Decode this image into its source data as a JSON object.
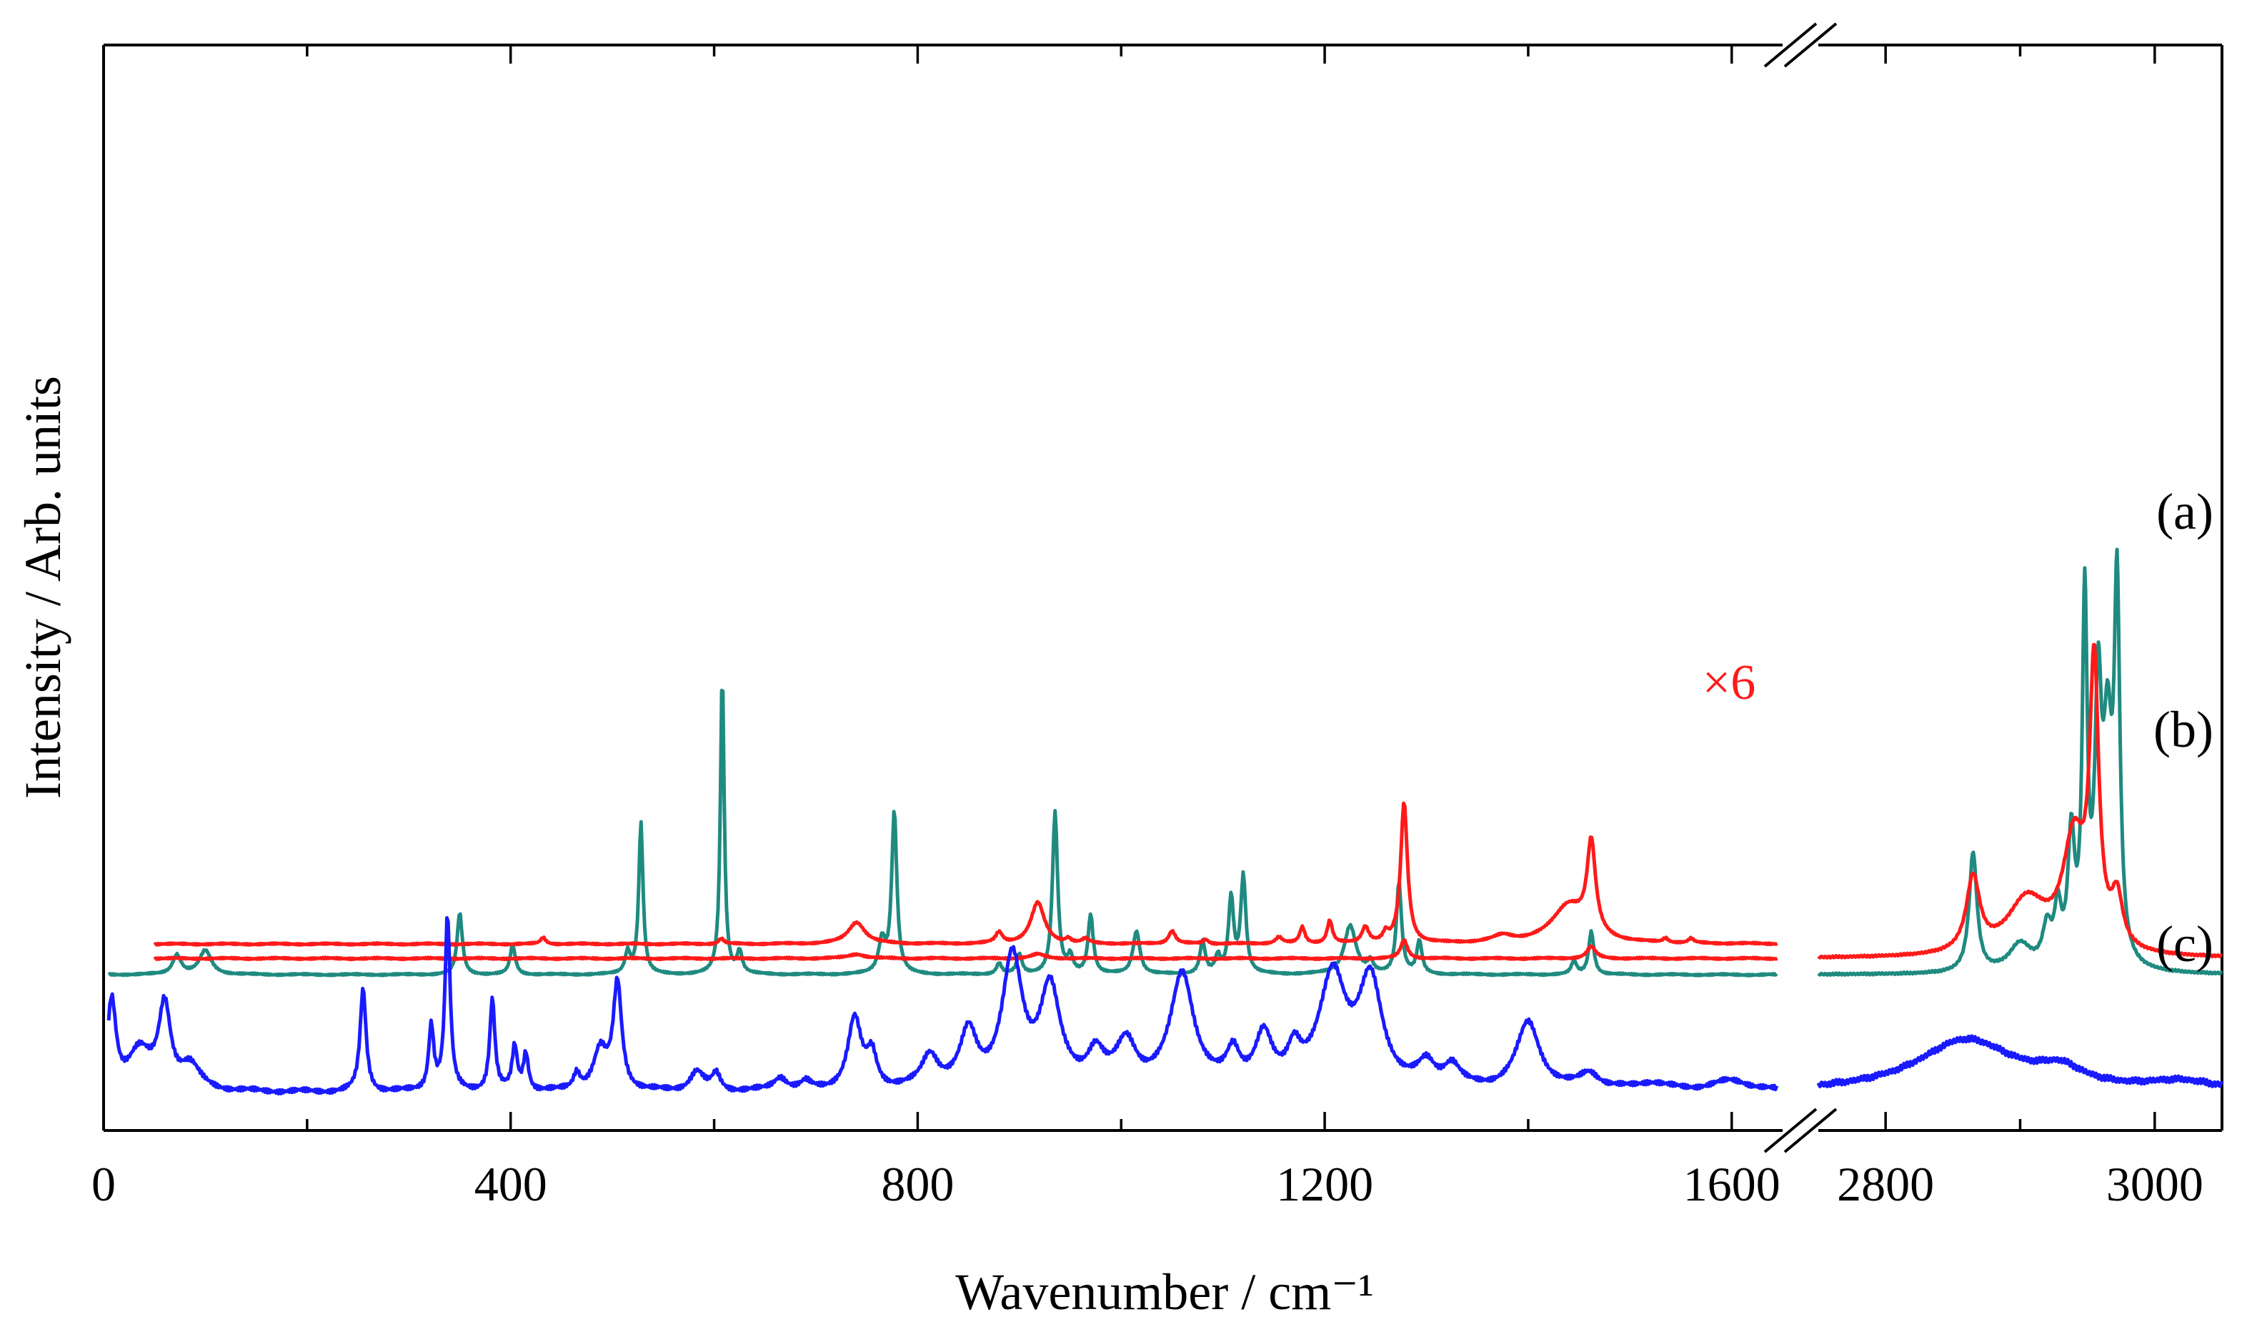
{
  "chart_data": {
    "type": "line",
    "xlabel": "Wavenumber / cm⁻¹",
    "ylabel": "Intensity / Arb. units",
    "axis_break": {
      "from": 1650,
      "to": 2750
    },
    "xlim_left": [
      0,
      1650
    ],
    "xlim_right": [
      2750,
      3050
    ],
    "xticks": [
      {
        "value": 0,
        "label": "0"
      },
      {
        "value": 400,
        "label": "400"
      },
      {
        "value": 800,
        "label": "800"
      },
      {
        "value": 1200,
        "label": "1200"
      },
      {
        "value": 1600,
        "label": "1600"
      },
      {
        "value": 2800,
        "label": "2800"
      },
      {
        "value": 3000,
        "label": "3000"
      }
    ],
    "yticks_labeled": false,
    "annotation": {
      "text": "×6",
      "x": 1600,
      "color": "#ff1a1a"
    },
    "series": [
      {
        "name": "(a)",
        "color": "#1f8a80",
        "baseline": 0.1435,
        "peaks": [
          [
            72,
            0.018,
            5
          ],
          [
            100,
            0.022,
            7
          ],
          [
            350,
            0.057,
            3
          ],
          [
            402,
            0.027,
            3
          ],
          [
            515,
            0.02,
            3
          ],
          [
            528,
            0.14,
            2.5
          ],
          [
            608,
            0.28,
            2.2
          ],
          [
            625,
            0.02,
            3
          ],
          [
            765,
            0.03,
            4
          ],
          [
            777,
            0.15,
            3
          ],
          [
            880,
            0.01,
            3
          ],
          [
            900,
            0.018,
            3
          ],
          [
            935,
            0.15,
            3
          ],
          [
            950,
            0.015,
            3
          ],
          [
            970,
            0.055,
            3
          ],
          [
            1015,
            0.04,
            4
          ],
          [
            1080,
            0.03,
            3
          ],
          [
            1095,
            0.015,
            3
          ],
          [
            1108,
            0.07,
            3
          ],
          [
            1120,
            0.09,
            3
          ],
          [
            1225,
            0.045,
            7
          ],
          [
            1245,
            0.01,
            3
          ],
          [
            1273,
            0.085,
            3
          ],
          [
            1293,
            0.03,
            3
          ],
          [
            1445,
            0.012,
            3
          ],
          [
            1462,
            0.04,
            3
          ],
          [
            2865,
            0.11,
            3.5
          ],
          [
            2900,
            0.025,
            10
          ],
          [
            2920,
            0.035,
            4
          ],
          [
            2928,
            0.05,
            3
          ],
          [
            2938,
            0.115,
            3
          ],
          [
            2948,
            0.33,
            2.2
          ],
          [
            2958,
            0.23,
            3
          ],
          [
            2965,
            0.19,
            4
          ],
          [
            2972,
            0.33,
            2.5
          ]
        ]
      },
      {
        "name": "(b)",
        "color": "#ff1a1a",
        "baseline": 0.0,
        "peaks": [
          [
            1278,
            0.017,
            4
          ],
          [
            1462,
            0.011,
            5
          ],
          [
            740,
            0.004,
            10
          ],
          [
            918,
            0.004,
            8
          ],
          [
            2865,
            0.068,
            6
          ],
          [
            2905,
            0.05,
            18
          ],
          [
            2940,
            0.1,
            10
          ],
          [
            2955,
            0.25,
            4
          ],
          [
            2972,
            0.045,
            5
          ]
        ]
      },
      {
        "name": "(b)×6",
        "color": "#ff1a1a",
        "baseline": 0.0,
        "peaks": [
          [
            432,
            0.006,
            3
          ],
          [
            607,
            0.005,
            3
          ],
          [
            740,
            0.02,
            10
          ],
          [
            880,
            0.01,
            4
          ],
          [
            918,
            0.038,
            8
          ],
          [
            948,
            0.004,
            3
          ],
          [
            965,
            0.004,
            4
          ],
          [
            1050,
            0.012,
            4
          ],
          [
            1083,
            0.004,
            3
          ],
          [
            1155,
            0.006,
            4
          ],
          [
            1178,
            0.015,
            3
          ],
          [
            1205,
            0.021,
            3
          ],
          [
            1240,
            0.015,
            4
          ],
          [
            1260,
            0.008,
            3
          ],
          [
            1278,
            0.13,
            4
          ],
          [
            1375,
            0.006,
            12
          ],
          [
            1440,
            0.035,
            20
          ],
          [
            1462,
            0.083,
            5
          ],
          [
            1535,
            0.004,
            3
          ],
          [
            1560,
            0.004,
            3
          ]
        ]
      },
      {
        "name": "(c)",
        "color": "#1a1aff",
        "baseline": 0.0,
        "peaks": [
          [
            8,
            0.08,
            5
          ],
          [
            35,
            0.036,
            14
          ],
          [
            60,
            0.075,
            7
          ],
          [
            85,
            0.022,
            12
          ],
          [
            255,
            0.095,
            3.5
          ],
          [
            322,
            0.06,
            3
          ],
          [
            338,
            0.161,
            3
          ],
          [
            382,
            0.085,
            3
          ],
          [
            404,
            0.04,
            3
          ],
          [
            415,
            0.034,
            3
          ],
          [
            465,
            0.015,
            4
          ],
          [
            488,
            0.036,
            8
          ],
          [
            505,
            0.098,
            5
          ],
          [
            583,
            0.018,
            8
          ],
          [
            602,
            0.015,
            5
          ],
          [
            665,
            0.012,
            8
          ],
          [
            690,
            0.007,
            6
          ],
          [
            738,
            0.065,
            8
          ],
          [
            755,
            0.03,
            6
          ],
          [
            812,
            0.03,
            10
          ],
          [
            850,
            0.05,
            10
          ],
          [
            893,
            0.118,
            12
          ],
          [
            930,
            0.09,
            12
          ],
          [
            975,
            0.03,
            10
          ],
          [
            1005,
            0.04,
            12
          ],
          [
            1060,
            0.105,
            14
          ],
          [
            1110,
            0.03,
            8
          ],
          [
            1140,
            0.045,
            10
          ],
          [
            1170,
            0.03,
            8
          ],
          [
            1208,
            0.102,
            16
          ],
          [
            1245,
            0.095,
            14
          ],
          [
            1300,
            0.02,
            10
          ],
          [
            1325,
            0.02,
            10
          ],
          [
            1400,
            0.062,
            14
          ],
          [
            1460,
            0.015,
            12
          ],
          [
            1520,
            0.007,
            20
          ],
          [
            1600,
            0.01,
            25
          ],
          [
            2860,
            0.048,
            45
          ],
          [
            2930,
            0.015,
            20
          ],
          [
            3020,
            0.008,
            30
          ]
        ]
      }
    ],
    "series_label_order": [
      "(a)",
      "(b)",
      "(c)"
    ]
  }
}
